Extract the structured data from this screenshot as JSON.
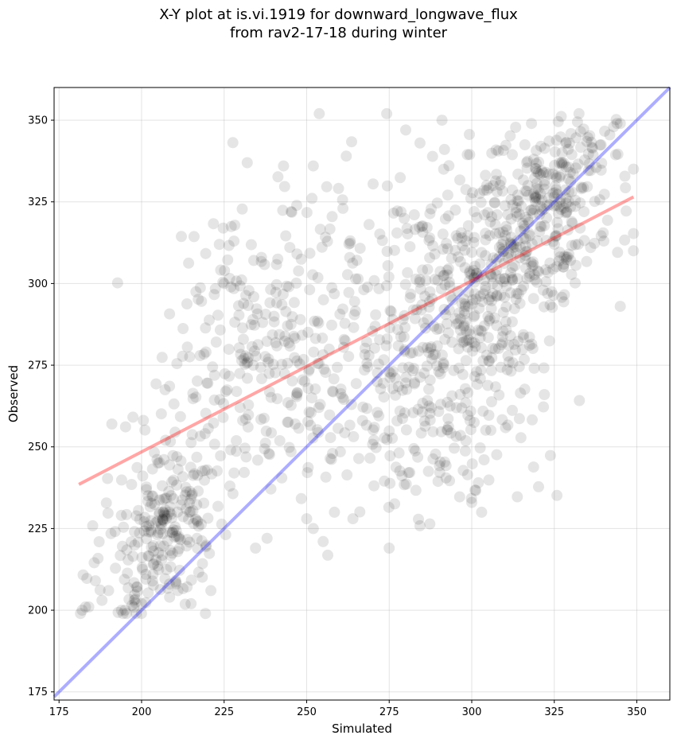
{
  "chart_data": {
    "type": "scatter",
    "title_lines": [
      "X-Y plot at is.vi.1919 for downward_longwave_flux",
      "from rav2-17-18 during winter"
    ],
    "xlabel": "Simulated",
    "ylabel": "Observed",
    "xlim": [
      173.5,
      360
    ],
    "ylim": [
      172.5,
      360
    ],
    "xticks": [
      175,
      200,
      225,
      250,
      275,
      300,
      325,
      350
    ],
    "yticks": [
      175,
      200,
      225,
      250,
      275,
      300,
      325,
      350
    ],
    "grid": true,
    "point_color": "#000000",
    "point_opacity": 0.1,
    "one_to_one_line": {
      "x": [
        173.5,
        360
      ],
      "y": [
        173.5,
        360
      ],
      "color": "#0000ff",
      "opacity": 0.32
    },
    "fit_line": {
      "x": [
        181,
        349
      ],
      "y": [
        238.5,
        326.5
      ],
      "color": "#ff0000",
      "opacity": 0.35
    },
    "clusters": [
      {
        "cx": 208,
        "cy": 228,
        "sx": 7,
        "sy": 12,
        "n": 190
      },
      {
        "cx": 240,
        "cy": 280,
        "sx": 17,
        "sy": 22,
        "n": 300
      },
      {
        "cx": 285,
        "cy": 285,
        "sx": 15,
        "sy": 24,
        "n": 260
      },
      {
        "cx": 305,
        "cy": 295,
        "sx": 10,
        "sy": 17,
        "n": 230
      },
      {
        "cx": 322,
        "cy": 322,
        "sx": 10,
        "sy": 12,
        "n": 230
      },
      {
        "cx": 288,
        "cy": 250,
        "sx": 14,
        "sy": 12,
        "n": 70
      },
      {
        "cx": 195,
        "cy": 210,
        "sx": 6,
        "sy": 8,
        "n": 40
      },
      {
        "cx": 335,
        "cy": 340,
        "sx": 6,
        "sy": 6,
        "n": 40
      }
    ],
    "points": [
      [
        181.5,
        199
      ],
      [
        182,
        200
      ],
      [
        183,
        201
      ],
      [
        184,
        201
      ],
      [
        344,
        349
      ],
      [
        345,
        349
      ],
      [
        343,
        348
      ],
      [
        213.5,
        231
      ],
      [
        214.5,
        230
      ],
      [
        207.5,
        228
      ],
      [
        207,
        229
      ],
      [
        206,
        226
      ],
      [
        298,
        293
      ],
      [
        299,
        293
      ],
      [
        297,
        294
      ],
      [
        291.5,
        335
      ],
      [
        291,
        350
      ],
      [
        280,
        347
      ],
      [
        262,
        339
      ],
      [
        252,
        336
      ],
      [
        243,
        336
      ],
      [
        349,
        310
      ],
      [
        345,
        293
      ],
      [
        322,
        266
      ],
      [
        234.5,
        219
      ],
      [
        255,
        221
      ],
      [
        275,
        219
      ],
      [
        264,
        228
      ],
      [
        252,
        225
      ],
      [
        221,
        206
      ],
      [
        215,
        202
      ],
      [
        211,
        206
      ],
      [
        200,
        202
      ],
      [
        188,
        203
      ],
      [
        190,
        206
      ],
      [
        195,
        200
      ],
      [
        191,
        257
      ],
      [
        232,
        337
      ],
      [
        261,
        323
      ],
      [
        302,
        239
      ],
      [
        303,
        230
      ],
      [
        238,
        222
      ],
      [
        334,
        322
      ],
      [
        340,
        313
      ],
      [
        336,
        311
      ],
      [
        228,
        242
      ],
      [
        225,
        300
      ]
    ]
  }
}
